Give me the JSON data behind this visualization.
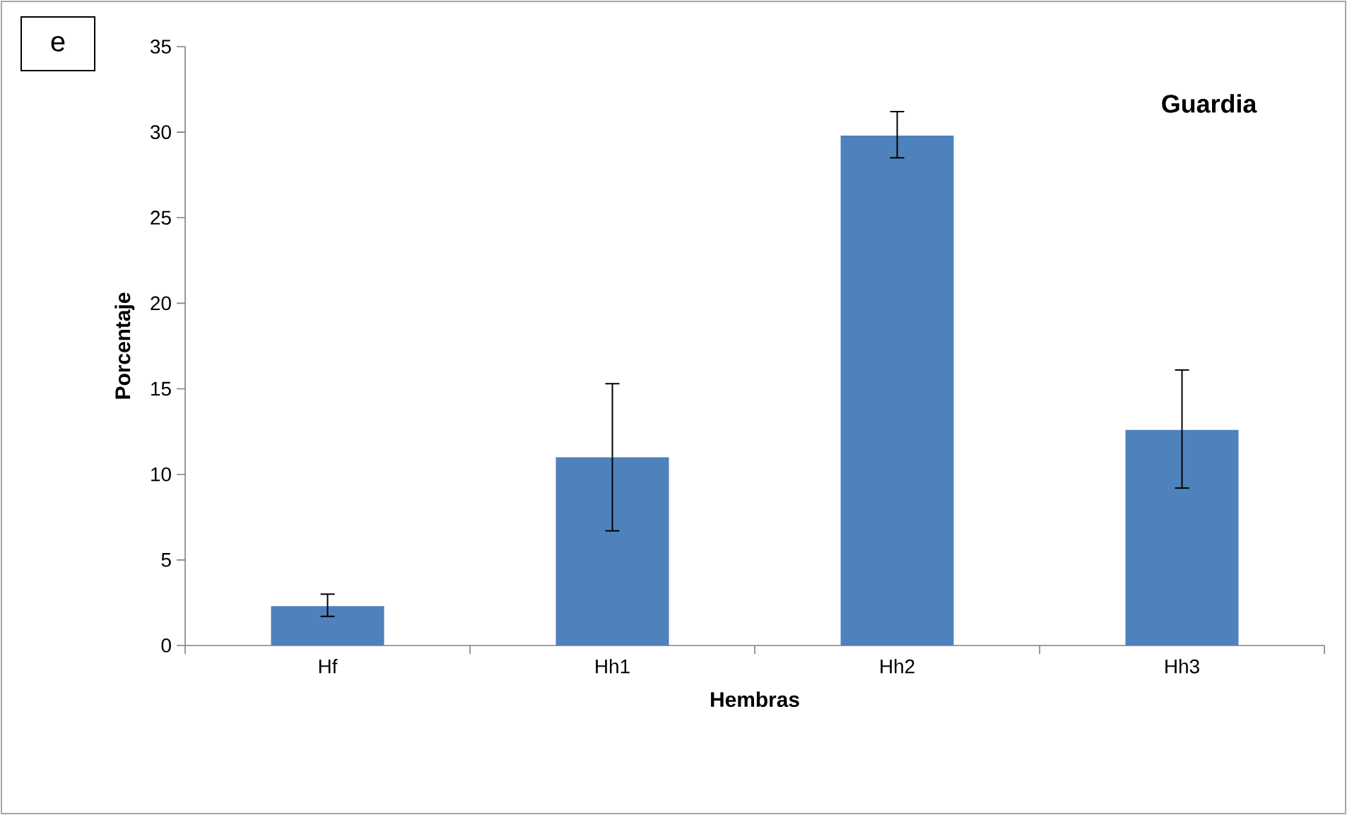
{
  "chart_data": {
    "type": "bar",
    "title": "Guardia",
    "xlabel": "Hembras",
    "ylabel": "Porcentaje",
    "categories": [
      "Hf",
      "Hh1",
      "Hh2",
      "Hh3"
    ],
    "values": [
      2.3,
      11.0,
      29.8,
      12.6
    ],
    "errors": [
      [
        1.7,
        3.0
      ],
      [
        6.7,
        15.3
      ],
      [
        28.5,
        31.2
      ],
      [
        9.2,
        16.1
      ]
    ],
    "color": "#4f81bd",
    "ylim": [
      0,
      35
    ],
    "yticks": [
      0,
      5,
      10,
      15,
      20,
      25,
      30,
      35
    ],
    "annotations": [
      "e"
    ]
  }
}
